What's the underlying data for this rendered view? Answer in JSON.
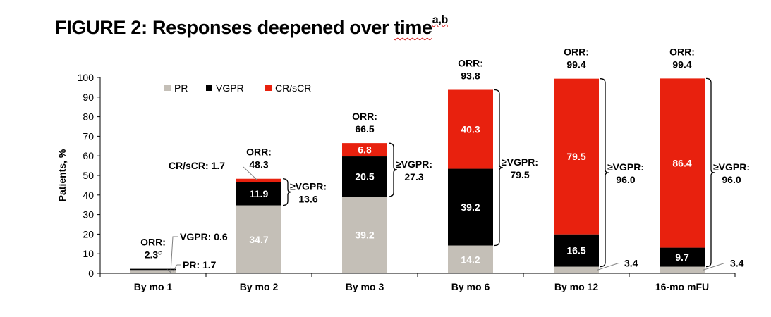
{
  "figure": {
    "title_main": "FIGURE 2: Responses deepened over ",
    "title_last_word": "time",
    "title_superscript": "a,b"
  },
  "chart_data": {
    "type": "bar",
    "stacked": true,
    "ylabel": "Patients, %",
    "ylim": [
      0,
      100
    ],
    "yticks": [
      0,
      10,
      20,
      30,
      40,
      50,
      60,
      70,
      80,
      90,
      100
    ],
    "categories": [
      "By mo 1",
      "By mo 2",
      "By mo 3",
      "By mo 6",
      "By mo 12",
      "16-mo mFU"
    ],
    "series": [
      {
        "name": "PR",
        "color": "#c4bfb7",
        "values": [
          1.7,
          34.7,
          39.2,
          14.2,
          3.4,
          3.4
        ]
      },
      {
        "name": "VGPR",
        "color": "#000000",
        "values": [
          0.6,
          11.9,
          20.5,
          39.2,
          16.5,
          9.7
        ]
      },
      {
        "name": "CR/sCR",
        "color": "#e8210e",
        "values": [
          0,
          1.7,
          6.8,
          40.3,
          79.5,
          86.4
        ]
      }
    ],
    "legend_position": "top-left",
    "orr_labels": [
      {
        "line1": "ORR:",
        "line2": "2.3",
        "sup": "c"
      },
      {
        "line1": "ORR:",
        "line2": "48.3"
      },
      {
        "line1": "ORR:",
        "line2": "66.5"
      },
      {
        "line1": "ORR:",
        "line2": "93.8"
      },
      {
        "line1": "ORR:",
        "line2": "99.4"
      },
      {
        "line1": "ORR:",
        "line2": "99.4"
      }
    ],
    "vgpr_brackets": [
      null,
      {
        "line1": "≥VGPR:",
        "line2": "13.6"
      },
      {
        "line1": "≥VGPR:",
        "line2": "27.3"
      },
      {
        "line1": "≥VGPR:",
        "line2": "79.5"
      },
      {
        "line1": "≥VGPR:",
        "line2": "96.0"
      },
      {
        "line1": "≥VGPR:",
        "line2": "96.0"
      }
    ],
    "callouts": [
      {
        "text": "VGPR: 0.6",
        "category": 0
      },
      {
        "text": "PR: 1.7",
        "category": 0
      },
      {
        "text": "CR/sCR: 1.7",
        "category": 1
      },
      {
        "text": "3.4",
        "category": 4
      },
      {
        "text": "3.4",
        "category": 5
      }
    ]
  }
}
